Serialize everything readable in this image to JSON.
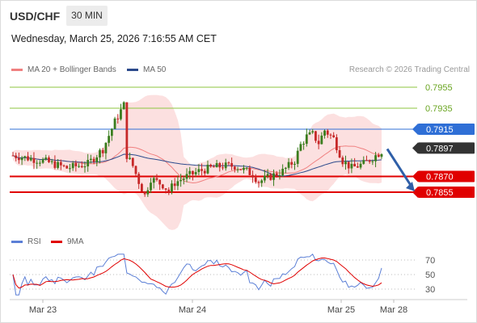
{
  "header": {
    "symbol": "USD/CHF",
    "timeframe": "30 MIN",
    "datetime": "Wednesday, March 25, 2026 7:16:55 AM CET"
  },
  "legend": {
    "ma20_label": "MA 20 + Bollinger Bands",
    "ma20_color": "#f08080",
    "ma50_label": "MA 50",
    "ma50_color": "#2c4a8c",
    "rsi_label": "RSI",
    "rsi_color": "#5b7fd6",
    "ma9_label": "9MA",
    "ma9_color": "#e00000"
  },
  "credit": "Research © 2026 Trading Central",
  "chart_data": {
    "type": "candlestick",
    "price_axis_range": [
      0.7845,
      0.7965
    ],
    "levels": [
      {
        "value": 0.7955,
        "label": "0.7955",
        "kind": "resistance",
        "color": "#8cc63f"
      },
      {
        "value": 0.7935,
        "label": "0.7935",
        "kind": "resistance",
        "color": "#8cc63f"
      },
      {
        "value": 0.7915,
        "label": "0.7915",
        "kind": "pivot",
        "color": "#2f6fd6"
      },
      {
        "value": 0.787,
        "label": "0.7870",
        "kind": "target",
        "color": "#e00000"
      },
      {
        "value": 0.7855,
        "label": "0.7855",
        "kind": "target",
        "color": "#e00000"
      }
    ],
    "last_price": {
      "value": 0.7897,
      "label": "0.7897",
      "color": "#333333"
    },
    "forecast": {
      "direction": "down",
      "from": 0.7897,
      "to": 0.7855
    },
    "x_tick_labels": [
      "Mar 23",
      "Mar 24",
      "Mar 25",
      "Mar 28"
    ],
    "rsi": {
      "levels": [
        70,
        50,
        30
      ],
      "labels": [
        "70",
        "50",
        "30"
      ],
      "range": [
        20,
        80
      ],
      "last_rsi": 59,
      "last_9ma": 53
    }
  }
}
